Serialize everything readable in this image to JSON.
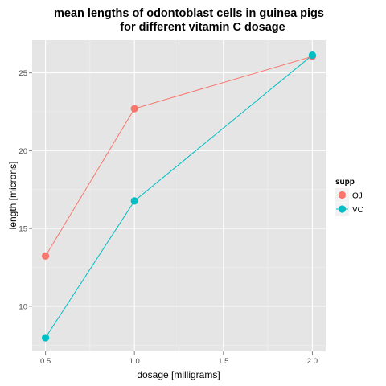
{
  "chart_data": {
    "type": "line",
    "title_lines": [
      "mean lengths of odontoblast cells in guinea pigs",
      "for different vitamin C dosage"
    ],
    "xlabel": "dosage [milligrams]",
    "ylabel": "length [microns]",
    "xlim": [
      0.425,
      2.075
    ],
    "ylim": [
      7.1,
      27.1
    ],
    "x_ticks": [
      0.5,
      1.0,
      1.5,
      2.0
    ],
    "x_tick_labels": [
      "0.5",
      "1.0",
      "1.5",
      "2.0"
    ],
    "y_ticks": [
      10,
      15,
      20,
      25
    ],
    "y_tick_labels": [
      "10",
      "15",
      "20",
      "25"
    ],
    "grid": true,
    "legend": {
      "title": "supp",
      "position": "right"
    },
    "series": [
      {
        "name": "OJ",
        "color": "#F8766D",
        "x": [
          0.5,
          1.0,
          2.0
        ],
        "y": [
          13.23,
          22.7,
          26.06
        ]
      },
      {
        "name": "VC",
        "color": "#00BFC4",
        "x": [
          0.5,
          1.0,
          2.0
        ],
        "y": [
          7.98,
          16.77,
          26.14
        ]
      }
    ]
  }
}
